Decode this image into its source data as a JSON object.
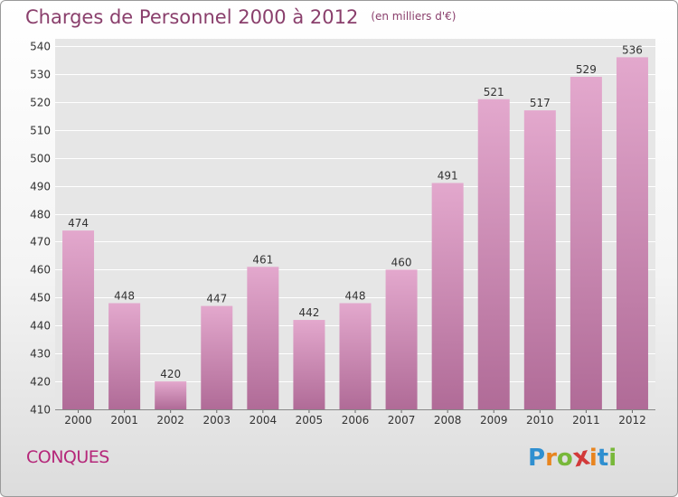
{
  "title": "Charges de Personnel 2000 à 2012",
  "subtitle": "(en milliers d'€)",
  "commune": "CONQUES",
  "logo": {
    "letters": [
      "P",
      "r",
      "o",
      "x",
      "i",
      "t",
      "i"
    ],
    "colors": [
      "#2f8fd0",
      "#e8851f",
      "#78b83a",
      "#d23a3a",
      "#e8851f",
      "#2f8fd0",
      "#78b83a"
    ]
  },
  "colors": {
    "bar_top": "#e3a8cd",
    "bar_bottom": "#b06b97",
    "grid": "#ffffff",
    "plot_bg": "#e6e6e6",
    "title": "#8a3f6c",
    "axis_text": "#333333"
  },
  "chart_data": {
    "type": "bar",
    "categories": [
      "2000",
      "2001",
      "2002",
      "2003",
      "2004",
      "2005",
      "2006",
      "2007",
      "2008",
      "2009",
      "2010",
      "2011",
      "2012"
    ],
    "values": [
      474,
      448,
      420,
      447,
      461,
      442,
      448,
      460,
      491,
      521,
      517,
      529,
      536
    ],
    "ylim": [
      410,
      540
    ],
    "yticks": [
      410,
      420,
      430,
      440,
      450,
      460,
      470,
      480,
      490,
      500,
      510,
      520,
      530,
      540
    ],
    "grid": true,
    "data_labels": true
  }
}
